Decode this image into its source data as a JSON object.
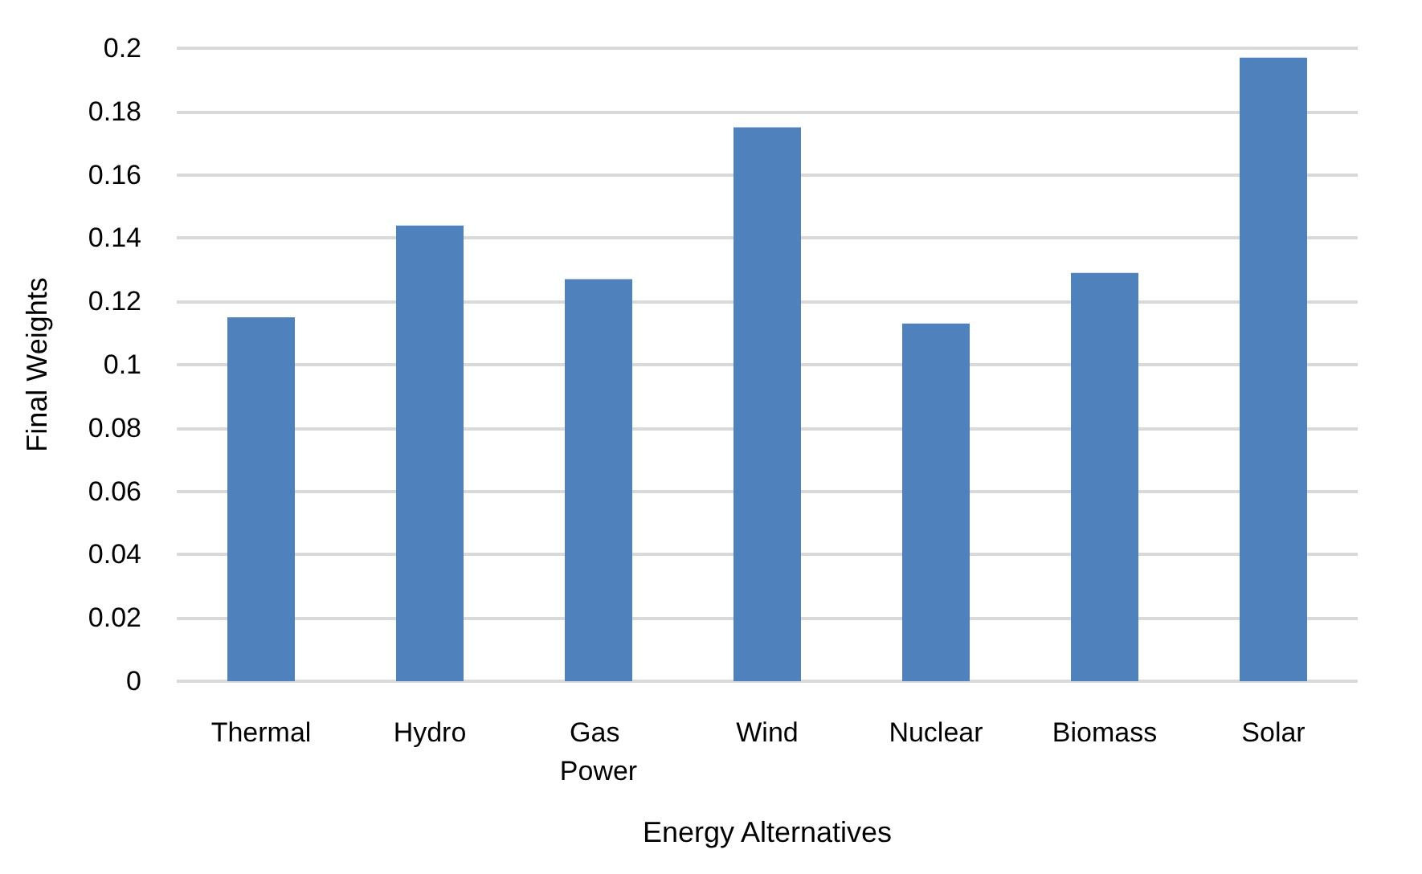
{
  "chart_data": {
    "type": "bar",
    "xlabel": "Energy Alternatives",
    "ylabel": "Final Weights",
    "categories": [
      "Thermal",
      "Hydro",
      "Gas Power",
      "Wind",
      "Nuclear",
      "Biomass",
      "Solar"
    ],
    "values": [
      0.115,
      0.144,
      0.127,
      0.175,
      0.113,
      0.129,
      0.197
    ],
    "color": "#4f81bd",
    "ylim": [
      0,
      0.2
    ],
    "yticks": [
      0,
      0.02,
      0.04,
      0.06,
      0.08,
      0.1,
      0.12,
      0.14,
      0.16,
      0.18,
      0.2
    ],
    "grid": "y"
  }
}
